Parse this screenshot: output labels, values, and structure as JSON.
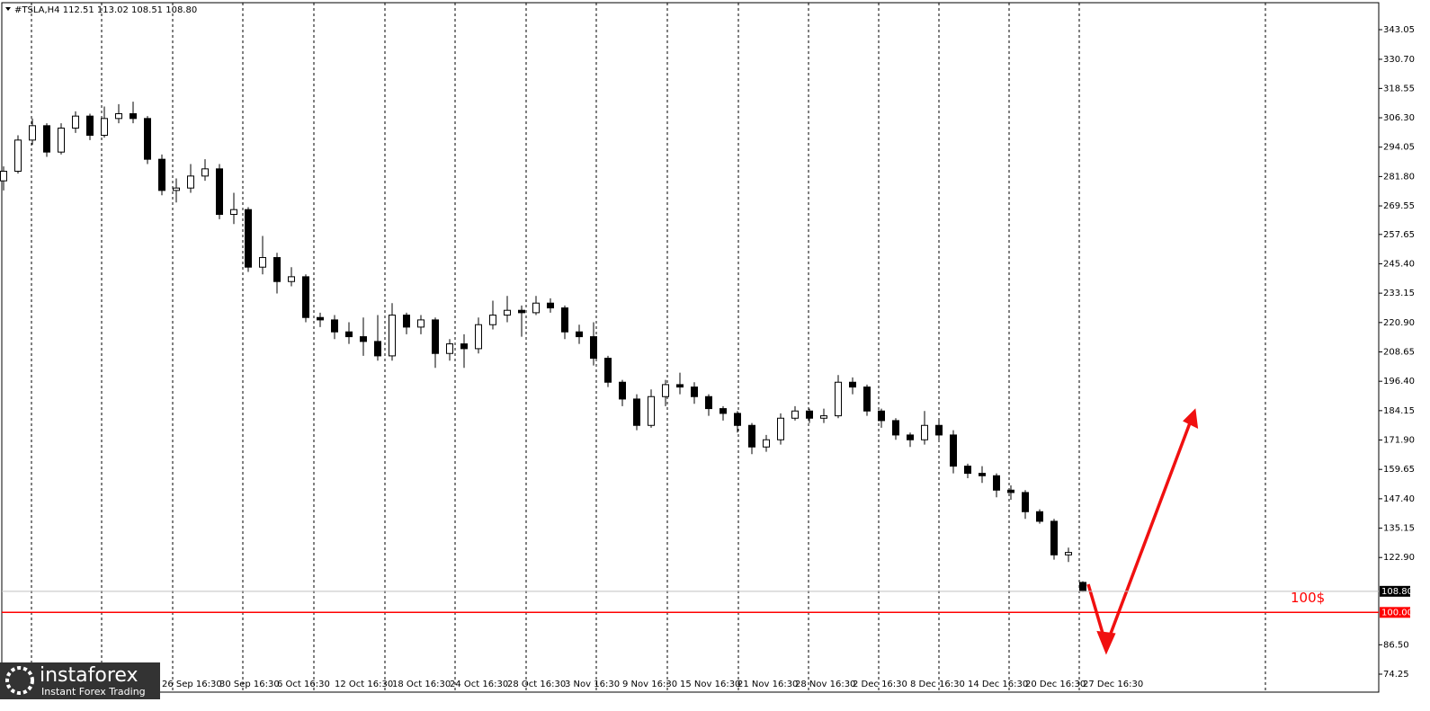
{
  "chart_data": {
    "type": "candlestick",
    "header": "#TSLA,H4  112.51 113.02 108.51 108.80",
    "branding": {
      "name": "instaforex",
      "tagline": "Instant Forex Trading"
    },
    "categories": [
      null,
      null,
      null,
      null,
      null,
      null,
      null,
      null,
      null,
      null,
      null,
      "26 Sep 16:30",
      null,
      null,
      null,
      "30 Sep 16:30",
      null,
      null,
      null,
      "6 Oct 16:30",
      null,
      null,
      null,
      "12 Oct 16:30",
      null,
      null,
      null,
      "18 Oct 16:30",
      null,
      null,
      null,
      "24 Oct 16:30",
      null,
      null,
      null,
      "28 Oct 16:30",
      null,
      null,
      null,
      "3 Nov 16:30",
      null,
      null,
      null,
      "9 Nov 16:30",
      null,
      null,
      null,
      "15 Nov 16:30",
      null,
      null,
      null,
      "21 Nov 16:30",
      null,
      null,
      null,
      "28 Nov 16:30",
      null,
      null,
      null,
      "2 Dec 16:30",
      null,
      null,
      null,
      "8 Dec 16:30",
      null,
      null,
      null,
      "14 Dec 16:30",
      null,
      null,
      null,
      "20 Dec 16:30",
      null,
      null,
      null,
      "27 Dec 16:30"
    ],
    "open": [
      280,
      284,
      297,
      303,
      292,
      302,
      307,
      299,
      306,
      308,
      306,
      289,
      276,
      277,
      282,
      285,
      266,
      268,
      244,
      248,
      238,
      240,
      223,
      222,
      217,
      215,
      213,
      207,
      224,
      219,
      222,
      208,
      212,
      210,
      220,
      224,
      226,
      225,
      229,
      227,
      217,
      215,
      206,
      196,
      189,
      178,
      190,
      195,
      194,
      190,
      185,
      183,
      178,
      169,
      172,
      181,
      184,
      181,
      182,
      196,
      194,
      184,
      180,
      174,
      172,
      178,
      174,
      161,
      158,
      157,
      151,
      150,
      142,
      138,
      124,
      112.51
    ],
    "high": [
      286,
      299,
      306,
      304,
      304,
      309,
      308,
      311,
      312,
      313,
      307,
      291,
      281,
      287,
      289,
      287,
      275,
      269,
      257,
      250,
      244,
      241,
      225,
      224,
      221,
      223,
      224,
      229,
      225,
      224,
      223,
      214,
      216,
      223,
      230,
      232,
      228,
      232,
      231,
      228,
      220,
      221,
      207,
      197,
      191,
      193,
      197,
      200,
      196,
      191,
      186,
      184,
      179,
      174,
      183,
      186,
      185,
      185,
      199,
      198,
      195,
      185,
      181,
      175,
      184,
      180,
      176,
      162,
      161,
      158,
      153,
      151,
      143,
      139,
      127,
      113.02
    ],
    "low": [
      276,
      283,
      295,
      290,
      291,
      300,
      297,
      298,
      304,
      304,
      287,
      274,
      271,
      275,
      280,
      264,
      262,
      242,
      241,
      233,
      236,
      221,
      219,
      214,
      212,
      207,
      205,
      205,
      216,
      216,
      202,
      205,
      202,
      208,
      218,
      221,
      215,
      224,
      225,
      214,
      212,
      203,
      194,
      186,
      176,
      177,
      186,
      191,
      187,
      182,
      180,
      175,
      166,
      167,
      170,
      180,
      179,
      179,
      181,
      191,
      182,
      177,
      172,
      169,
      170,
      171,
      158,
      156,
      154,
      148,
      147,
      139,
      137,
      122,
      121,
      108.51
    ],
    "close": [
      284,
      297,
      303,
      292,
      302,
      307,
      299,
      306,
      308,
      306,
      289,
      276,
      277,
      282,
      285,
      266,
      268,
      244,
      248,
      238,
      240,
      223,
      222,
      217,
      215,
      213,
      207,
      224,
      219,
      222,
      208,
      212,
      210,
      220,
      224,
      226,
      225,
      229,
      227,
      217,
      215,
      206,
      196,
      189,
      178,
      190,
      195,
      194,
      190,
      185,
      183,
      178,
      169,
      172,
      181,
      184,
      181,
      182,
      196,
      194,
      184,
      180,
      174,
      172,
      178,
      174,
      161,
      158,
      157,
      151,
      150,
      142,
      138,
      124,
      125,
      108.8
    ],
    "ylim": [
      67.5,
      353.55
    ],
    "yticks": [
      343.05,
      {
        "value": 330.7,
        "label": "330.70"
      },
      318.55,
      {
        "value": 306.3,
        "label": "306.30"
      },
      294.05,
      {
        "value": 281.8,
        "label": "281.80"
      },
      269.55,
      257.65,
      {
        "value": 245.4,
        "label": "245.40"
      },
      233.15,
      {
        "value": 220.9,
        "label": "220.90"
      },
      208.65,
      {
        "value": 196.4,
        "label": "196.40"
      },
      184.15,
      {
        "value": 171.9,
        "label": "171.90"
      },
      159.65,
      {
        "value": 147.4,
        "label": "147.40"
      },
      135.15,
      {
        "value": 122.9,
        "label": "122.90"
      },
      {
        "value": 86.5,
        "label": "86.50"
      },
      74.25
    ],
    "price_line": {
      "value": 108.8,
      "label": "108.80",
      "color": "#c0c0c0"
    },
    "level": {
      "value": 100,
      "label": "100.00",
      "text": "100$",
      "color": "#ff0000"
    },
    "bull_color": "#ffffff",
    "bear_color": "#000000"
  }
}
